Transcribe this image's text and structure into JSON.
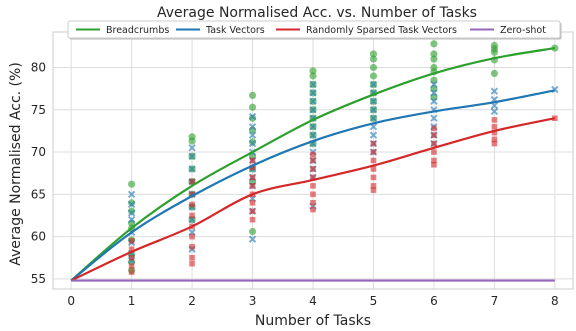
{
  "chart_data": {
    "type": "line",
    "title": "Average Normalised Acc. vs. Number of Tasks",
    "xlabel": "Number of Tasks",
    "ylabel": "Average Normalised Acc. (%)",
    "xlim": [
      -0.3,
      8.3
    ],
    "ylim": [
      53.8,
      84.2
    ],
    "xticks": [
      0,
      1,
      2,
      3,
      4,
      5,
      6,
      7,
      8
    ],
    "yticks": [
      55,
      60,
      65,
      70,
      75,
      80
    ],
    "grid": true,
    "legend_position": "top-center",
    "x": [
      0,
      1,
      2,
      3,
      4,
      5,
      6,
      7,
      8
    ],
    "series": [
      {
        "name": "Breadcrumbs",
        "color": "#2ca02c",
        "marker": "circle",
        "values": [
          54.8,
          61.0,
          66.0,
          70.0,
          73.8,
          76.8,
          79.3,
          81.1,
          82.3
        ],
        "scatter": [
          [
            1,
            66.2
          ],
          [
            1,
            64.0
          ],
          [
            1,
            63.0
          ],
          [
            1,
            61.6
          ],
          [
            1,
            61.0
          ],
          [
            1,
            59.6
          ],
          [
            1,
            57.9
          ],
          [
            1,
            57.0
          ],
          [
            1,
            56.0
          ],
          [
            2,
            71.8
          ],
          [
            2,
            71.3
          ],
          [
            2,
            69.5
          ],
          [
            2,
            68.0
          ],
          [
            2,
            66.5
          ],
          [
            2,
            65.0
          ],
          [
            2,
            63.5
          ],
          [
            2,
            62.0
          ],
          [
            3,
            76.7
          ],
          [
            3,
            75.3
          ],
          [
            3,
            74.0
          ],
          [
            3,
            72.6
          ],
          [
            3,
            71.2
          ],
          [
            3,
            69.5
          ],
          [
            3,
            68.0
          ],
          [
            3,
            66.5
          ],
          [
            3,
            60.6
          ],
          [
            4,
            79.6
          ],
          [
            4,
            79.0
          ],
          [
            4,
            78.0
          ],
          [
            4,
            77.0
          ],
          [
            4,
            76.0
          ],
          [
            4,
            75.0
          ],
          [
            4,
            74.0
          ],
          [
            4,
            73.0
          ],
          [
            4,
            72.0
          ],
          [
            4,
            71.0
          ],
          [
            5,
            81.6
          ],
          [
            5,
            81.0
          ],
          [
            5,
            80.0
          ],
          [
            5,
            79.0
          ],
          [
            5,
            78.0
          ],
          [
            5,
            77.0
          ],
          [
            5,
            76.0
          ],
          [
            5,
            75.0
          ],
          [
            5,
            74.0
          ],
          [
            6,
            82.8
          ],
          [
            6,
            81.6
          ],
          [
            6,
            81.0
          ],
          [
            6,
            80.0
          ],
          [
            6,
            79.5
          ],
          [
            6,
            78.5
          ],
          [
            6,
            77.5
          ],
          [
            6,
            76.5
          ],
          [
            7,
            82.6
          ],
          [
            7,
            82.2
          ],
          [
            7,
            81.8
          ],
          [
            7,
            80.9
          ],
          [
            7,
            79.3
          ],
          [
            8,
            82.3
          ]
        ]
      },
      {
        "name": "Task Vectors",
        "color": "#1f77b4",
        "marker": "x",
        "values": [
          54.8,
          60.5,
          64.8,
          68.4,
          71.3,
          73.4,
          74.8,
          75.9,
          77.3
        ],
        "scatter": [
          [
            1,
            65.0
          ],
          [
            1,
            63.8
          ],
          [
            1,
            62.8
          ],
          [
            1,
            62.0
          ],
          [
            1,
            60.5
          ],
          [
            1,
            59.3
          ],
          [
            1,
            58.0
          ],
          [
            1,
            57.2
          ],
          [
            2,
            70.5
          ],
          [
            2,
            69.5
          ],
          [
            2,
            68.0
          ],
          [
            2,
            66.5
          ],
          [
            2,
            65.0
          ],
          [
            2,
            63.5
          ],
          [
            2,
            62.0
          ],
          [
            2,
            60.5
          ],
          [
            2,
            58.5
          ],
          [
            3,
            74.2
          ],
          [
            3,
            73.0
          ],
          [
            3,
            72.0
          ],
          [
            3,
            71.0
          ],
          [
            3,
            70.0
          ],
          [
            3,
            69.0
          ],
          [
            3,
            68.0
          ],
          [
            3,
            67.0
          ],
          [
            3,
            66.0
          ],
          [
            3,
            64.5
          ],
          [
            3,
            63.0
          ],
          [
            3,
            59.7
          ],
          [
            4,
            78.0
          ],
          [
            4,
            77.0
          ],
          [
            4,
            76.0
          ],
          [
            4,
            75.0
          ],
          [
            4,
            74.0
          ],
          [
            4,
            73.0
          ],
          [
            4,
            72.0
          ],
          [
            4,
            71.0
          ],
          [
            4,
            70.0
          ],
          [
            4,
            69.0
          ],
          [
            4,
            68.0
          ],
          [
            4,
            67.0
          ],
          [
            4,
            63.6
          ],
          [
            5,
            78.0
          ],
          [
            5,
            77.0
          ],
          [
            5,
            76.0
          ],
          [
            5,
            75.0
          ],
          [
            5,
            74.0
          ],
          [
            5,
            73.0
          ],
          [
            5,
            72.0
          ],
          [
            5,
            71.0
          ],
          [
            5,
            70.0
          ],
          [
            6,
            78.0
          ],
          [
            6,
            77.0
          ],
          [
            6,
            76.0
          ],
          [
            6,
            75.0
          ],
          [
            6,
            74.0
          ],
          [
            6,
            73.0
          ],
          [
            6,
            72.0
          ],
          [
            6,
            71.0
          ],
          [
            7,
            77.2
          ],
          [
            7,
            76.2
          ],
          [
            7,
            75.5
          ],
          [
            7,
            74.8
          ],
          [
            8,
            77.4
          ]
        ]
      },
      {
        "name": "Randomly Sparsed Task Vectors",
        "color": "#d62728",
        "marker": "square",
        "values": [
          54.8,
          58.2,
          61.2,
          65.0,
          66.7,
          68.4,
          70.5,
          72.5,
          74.0
        ],
        "scatter": [
          [
            1,
            59.5
          ],
          [
            1,
            58.5
          ],
          [
            1,
            57.5
          ],
          [
            1,
            56.5
          ],
          [
            1,
            55.8
          ],
          [
            2,
            66.5
          ],
          [
            2,
            65.0
          ],
          [
            2,
            63.8
          ],
          [
            2,
            62.5
          ],
          [
            2,
            61.2
          ],
          [
            2,
            60.0
          ],
          [
            2,
            58.8
          ],
          [
            2,
            57.5
          ],
          [
            2,
            56.8
          ],
          [
            3,
            69.0
          ],
          [
            3,
            68.2
          ],
          [
            3,
            67.0
          ],
          [
            3,
            66.0
          ],
          [
            3,
            65.0
          ],
          [
            3,
            64.0
          ],
          [
            3,
            63.0
          ],
          [
            3,
            62.0
          ],
          [
            4,
            69.7
          ],
          [
            4,
            69.0
          ],
          [
            4,
            68.0
          ],
          [
            4,
            67.0
          ],
          [
            4,
            66.0
          ],
          [
            4,
            65.0
          ],
          [
            4,
            64.0
          ],
          [
            4,
            63.2
          ],
          [
            5,
            71.0
          ],
          [
            5,
            70.0
          ],
          [
            5,
            69.0
          ],
          [
            5,
            68.0
          ],
          [
            5,
            67.0
          ],
          [
            5,
            66.0
          ],
          [
            5,
            65.5
          ],
          [
            6,
            72.8
          ],
          [
            6,
            72.0
          ],
          [
            6,
            71.0
          ],
          [
            6,
            70.0
          ],
          [
            6,
            69.0
          ],
          [
            6,
            68.5
          ],
          [
            7,
            73.8
          ],
          [
            7,
            73.0
          ],
          [
            7,
            72.3
          ],
          [
            7,
            71.5
          ],
          [
            7,
            71.0
          ],
          [
            8,
            74.0
          ]
        ]
      },
      {
        "name": "Zero-shot",
        "color": "#9467bd",
        "marker": "none",
        "values": [
          54.8,
          54.8,
          54.8,
          54.8,
          54.8,
          54.8,
          54.8,
          54.8,
          54.8
        ],
        "scatter": []
      }
    ]
  }
}
